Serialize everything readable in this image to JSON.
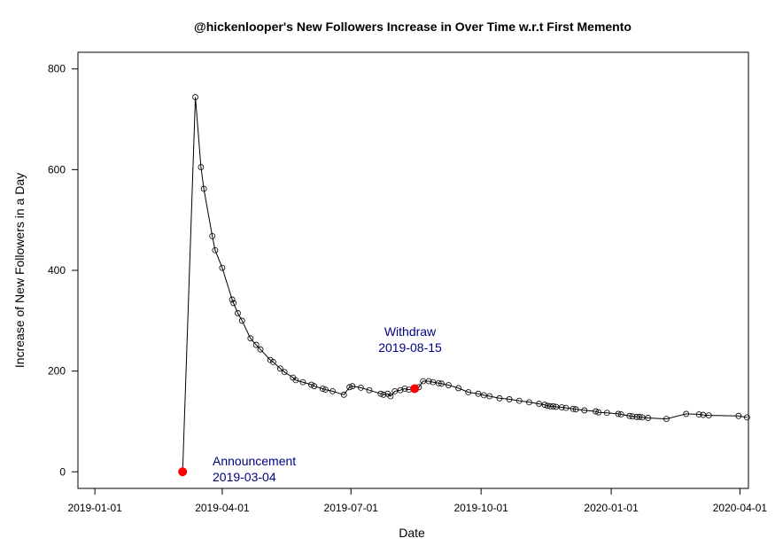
{
  "chart_data": {
    "type": "line",
    "title": "@hickenlooper's New Followers Increase in Over Time w.r.t First Memento",
    "xlabel": "Date",
    "ylabel": "Increase of New Followers in a Day",
    "xlim": [
      "2018-12-20",
      "2020-04-07"
    ],
    "ylim": [
      -33,
      833
    ],
    "x_ticks": [
      "2019-01-01",
      "2019-04-01",
      "2019-07-01",
      "2019-10-01",
      "2020-01-01",
      "2020-04-01"
    ],
    "y_ticks": [
      0,
      200,
      400,
      600,
      800
    ],
    "grid": false,
    "legend": "none",
    "line_color": "#000000",
    "highlight_color": "#ff0000",
    "annotation_color": "#000080",
    "series": [
      {
        "x": [
          "2019-03-04",
          "2019-03-13",
          "2019-03-17",
          "2019-03-19",
          "2019-03-25",
          "2019-03-27",
          "2019-04-01",
          "2019-04-08",
          "2019-04-09",
          "2019-04-12",
          "2019-04-15",
          "2019-04-21",
          "2019-04-25",
          "2019-04-28",
          "2019-05-05",
          "2019-05-07",
          "2019-05-12",
          "2019-05-15",
          "2019-05-21",
          "2019-05-23",
          "2019-05-28",
          "2019-06-03",
          "2019-06-05",
          "2019-06-11",
          "2019-06-13",
          "2019-06-18",
          "2019-06-26",
          "2019-06-30",
          "2019-07-02",
          "2019-07-08",
          "2019-07-14",
          "2019-07-22",
          "2019-07-24",
          "2019-07-27",
          "2019-07-29",
          "2019-08-01",
          "2019-08-05",
          "2019-08-08",
          "2019-08-11",
          "2019-08-15",
          "2019-08-18",
          "2019-08-21",
          "2019-08-25",
          "2019-08-28",
          "2019-09-01",
          "2019-09-03",
          "2019-09-08",
          "2019-09-15",
          "2019-09-22",
          "2019-09-29",
          "2019-10-03",
          "2019-10-07",
          "2019-10-14",
          "2019-10-21",
          "2019-10-28",
          "2019-11-04",
          "2019-11-11",
          "2019-11-15",
          "2019-11-17",
          "2019-11-19",
          "2019-11-21",
          "2019-11-23",
          "2019-11-27",
          "2019-11-30",
          "2019-12-05",
          "2019-12-07",
          "2019-12-13",
          "2019-12-21",
          "2019-12-23",
          "2019-12-29",
          "2020-01-06",
          "2020-01-08",
          "2020-01-14",
          "2020-01-16",
          "2020-01-19",
          "2020-01-21",
          "2020-01-23",
          "2020-01-27",
          "2020-02-09",
          "2020-02-23",
          "2020-03-03",
          "2020-03-06",
          "2020-03-10",
          "2020-03-31",
          "2020-04-06"
        ],
        "y": [
          0,
          744,
          605,
          562,
          468,
          440,
          405,
          342,
          335,
          315,
          300,
          265,
          252,
          243,
          222,
          218,
          205,
          198,
          187,
          182,
          178,
          173,
          170,
          165,
          163,
          160,
          153,
          168,
          170,
          167,
          162,
          155,
          153,
          155,
          150,
          160,
          162,
          165,
          163,
          165,
          168,
          180,
          180,
          178,
          176,
          175,
          172,
          166,
          158,
          155,
          152,
          150,
          146,
          144,
          141,
          138,
          135,
          133,
          131,
          130,
          130,
          129,
          128,
          127,
          125,
          124,
          122,
          120,
          118,
          117,
          115,
          114,
          111,
          110,
          109,
          109,
          108,
          107,
          105,
          115,
          114,
          113,
          112,
          111,
          108
        ]
      }
    ],
    "highlights": [
      {
        "x": "2019-03-04",
        "y": 0
      },
      {
        "x": "2019-08-15",
        "y": 165
      }
    ],
    "annotations": [
      {
        "lines": [
          "Announcement",
          "2019-03-04"
        ]
      },
      {
        "lines": [
          "Withdraw",
          "2019-08-15"
        ]
      }
    ]
  }
}
